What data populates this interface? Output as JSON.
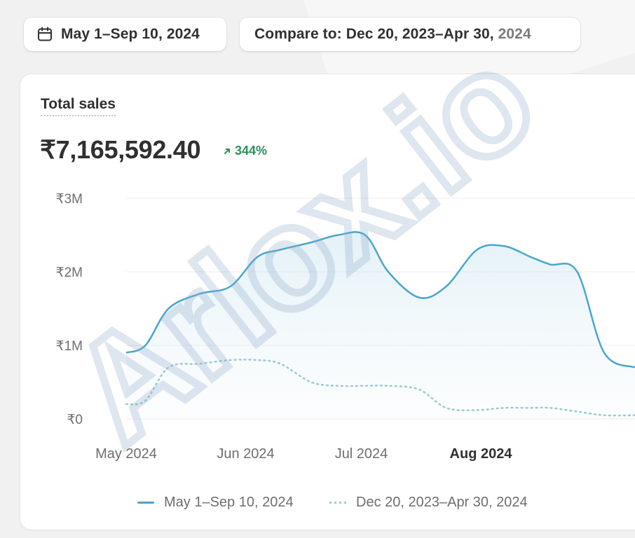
{
  "date_range": {
    "label": "May 1–Sep 10, 2024",
    "icon": "calendar-icon"
  },
  "compare": {
    "label_main": "Compare to: Dec 20, 2023–Apr 30,",
    "label_tail": " 2024"
  },
  "metric": {
    "title": "Total sales",
    "value": "₹7,165,592.40",
    "delta": "344%",
    "delta_color": "#2f8f5b"
  },
  "watermark": "Arlox.io",
  "colors": {
    "primary": "#4aa6cc",
    "comparison": "#9ccbd3",
    "grid": "#ececec"
  },
  "chart_data": {
    "type": "line",
    "x_ticks": [
      "May 2024",
      "Jun 2024",
      "Jul 2024",
      "Aug 2024"
    ],
    "y_ticks": [
      "₹0",
      "₹1M",
      "₹2M",
      "₹3M"
    ],
    "ylim": [
      0,
      3000000
    ],
    "xlim": [
      "2024-05-01",
      "2024-09-10"
    ],
    "grid": true,
    "legend_position": "bottom",
    "series": [
      {
        "name": "May 1–Sep 10, 2024",
        "style": "solid",
        "x": [
          "2024-05-01",
          "2024-05-06",
          "2024-05-12",
          "2024-05-20",
          "2024-05-28",
          "2024-06-04",
          "2024-06-10",
          "2024-06-18",
          "2024-06-25",
          "2024-07-02",
          "2024-07-08",
          "2024-07-16",
          "2024-07-23",
          "2024-07-31",
          "2024-08-07",
          "2024-08-14",
          "2024-08-19",
          "2024-08-26",
          "2024-09-02",
          "2024-09-10"
        ],
        "values": [
          900000,
          1000000,
          1500000,
          1700000,
          1800000,
          2200000,
          2300000,
          2400000,
          2500000,
          2500000,
          2000000,
          1650000,
          1800000,
          2300000,
          2350000,
          2200000,
          2100000,
          2000000,
          900000,
          700000
        ]
      },
      {
        "name": "Dec 20, 2023–Apr 30, 2024",
        "style": "dotted",
        "x": [
          "2024-05-01",
          "2024-05-06",
          "2024-05-12",
          "2024-05-20",
          "2024-05-28",
          "2024-06-04",
          "2024-06-10",
          "2024-06-18",
          "2024-06-25",
          "2024-07-02",
          "2024-07-08",
          "2024-07-16",
          "2024-07-23",
          "2024-07-31",
          "2024-08-07",
          "2024-08-14",
          "2024-08-19",
          "2024-08-26",
          "2024-09-02",
          "2024-09-10"
        ],
        "values": [
          200000,
          250000,
          700000,
          750000,
          800000,
          800000,
          750000,
          500000,
          450000,
          450000,
          450000,
          400000,
          150000,
          120000,
          150000,
          150000,
          150000,
          100000,
          50000,
          50000
        ]
      }
    ]
  }
}
